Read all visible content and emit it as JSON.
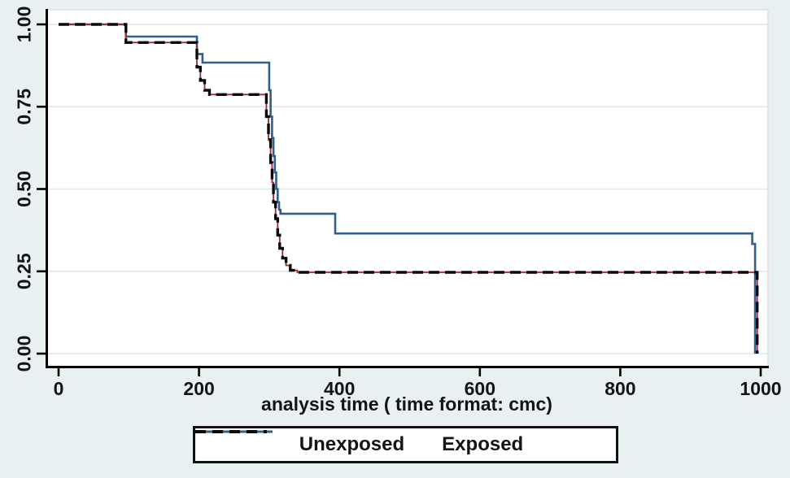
{
  "figure": {
    "bg_color": "#e9f0f1",
    "plot_bg_color": "#ffffff",
    "grid_color": "#dce9eb",
    "border_color": "#d3e2e4",
    "axis_color": "#000000"
  },
  "chart_data": {
    "type": "line",
    "subtype": "kaplan-meier-step",
    "title": "",
    "xlabel": "analysis time ( time format: cmc)",
    "ylabel": "",
    "xlim": [
      0,
      1000
    ],
    "ylim": [
      0.0,
      1.0
    ],
    "grid": "horizontal",
    "legend_position": "bottom-center",
    "x_ticks": [
      {
        "v": 0,
        "label": "0"
      },
      {
        "v": 200,
        "label": "200"
      },
      {
        "v": 400,
        "label": "400"
      },
      {
        "v": 600,
        "label": "600"
      },
      {
        "v": 800,
        "label": "800"
      },
      {
        "v": 1000,
        "label": "1000"
      }
    ],
    "y_ticks": [
      {
        "v": 0.0,
        "label": "0.00"
      },
      {
        "v": 0.25,
        "label": "0.25"
      },
      {
        "v": 0.5,
        "label": "0.50"
      },
      {
        "v": 0.75,
        "label": "0.75"
      },
      {
        "v": 1.0,
        "label": "1.00"
      }
    ],
    "series": [
      {
        "name": "Unexposed",
        "style": "solid",
        "color": "#2e5f8e",
        "stroke_width": 2.6,
        "start_value": 1.0,
        "drops": [
          [
            96,
            0.963
          ],
          [
            197,
            0.91
          ],
          [
            205,
            0.884
          ],
          [
            300,
            0.8
          ],
          [
            302,
            0.72
          ],
          [
            304,
            0.655
          ],
          [
            306,
            0.6
          ],
          [
            308,
            0.55
          ],
          [
            310,
            0.5
          ],
          [
            312,
            0.46
          ],
          [
            314,
            0.437
          ],
          [
            316,
            0.425
          ],
          [
            394,
            0.365
          ],
          [
            988,
            0.333
          ],
          [
            992,
            0.0
          ]
        ]
      },
      {
        "name": "Exposed",
        "style": "dashed",
        "color": "#0a0a0a",
        "underlay_color": "#9c2a33",
        "stroke_width": 3.4,
        "dash": "13 7",
        "start_value": 1.0,
        "drops": [
          [
            96,
            0.945
          ],
          [
            197,
            0.87
          ],
          [
            202,
            0.83
          ],
          [
            208,
            0.8
          ],
          [
            215,
            0.787
          ],
          [
            296,
            0.72
          ],
          [
            299,
            0.65
          ],
          [
            302,
            0.58
          ],
          [
            304,
            0.52
          ],
          [
            306,
            0.46
          ],
          [
            309,
            0.41
          ],
          [
            312,
            0.36
          ],
          [
            315,
            0.32
          ],
          [
            319,
            0.29
          ],
          [
            324,
            0.268
          ],
          [
            330,
            0.253
          ],
          [
            340,
            0.247
          ],
          [
            995,
            0.0
          ]
        ]
      }
    ]
  },
  "legend": {
    "items": [
      {
        "label": "Unexposed",
        "style": "solid",
        "color": "#2e5f8e"
      },
      {
        "label": "Exposed",
        "style": "dashed",
        "color": "#0a0a0a"
      }
    ]
  }
}
